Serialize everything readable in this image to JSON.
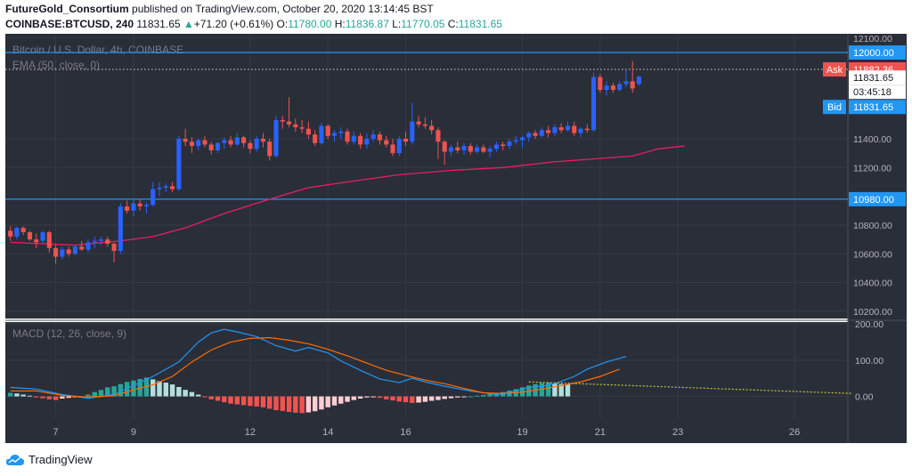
{
  "header": {
    "author": "FutureGold_Consortium",
    "published": "published on TradingView.com, October 20, 2020 13:14:45 BST",
    "symbol": "COINBASE:BTCUSD, 240",
    "last": "11831.65",
    "change_arrow": "▲",
    "change": "+71.20 (+0.61%)",
    "o_label": "O:",
    "o": "11780.00",
    "h_label": "H:",
    "h": "11836.87",
    "l_label": "L:",
    "l": "11770.05",
    "c_label": "C:",
    "c": "11831.65"
  },
  "footer": {
    "logo_text": "TradingView",
    "logo_icon": "tradingview-cloud-icon"
  },
  "colors": {
    "background": "#2a2e39",
    "grid": "#363a45",
    "up": "#2962ff",
    "down": "#ef5350",
    "ema": "#e91e63",
    "hline": "#2196f3",
    "macd": "#2196f3",
    "signal": "#ff6d00",
    "hist_pos_strong": "#26a69a",
    "hist_pos_weak": "#b2dfdb",
    "hist_neg_strong": "#ef5350",
    "hist_neg_weak": "#ffcdd2",
    "trendline": "#c0ca33",
    "ask": "#ef5350",
    "bid": "#2196f3"
  },
  "chart_data": [
    {
      "type": "candlestick",
      "title": "Bitcoin / U.S. Dollar, 4h, COINBASE",
      "indicator_label": "EMA (50, close, 0)",
      "y_axis_label": "USD",
      "y_ticks": [
        "12100.00",
        "11400.00",
        "11200.00",
        "10800.00",
        "10600.00",
        "10400.00",
        "10200.00"
      ],
      "ylim": [
        10150,
        12130
      ],
      "x_ticks": [
        {
          "label": "7",
          "i": 7
        },
        {
          "label": "9",
          "i": 19
        },
        {
          "label": "12",
          "i": 37
        },
        {
          "label": "14",
          "i": 49
        },
        {
          "label": "16",
          "i": 61
        },
        {
          "label": "19",
          "i": 79
        },
        {
          "label": "21",
          "i": 91
        },
        {
          "label": "23",
          "i": 103
        },
        {
          "label": "26",
          "i": 121
        }
      ],
      "candle_count_visible_slots": 130,
      "ohlc": [
        [
          10760,
          10790,
          10690,
          10720
        ],
        [
          10720,
          10790,
          10700,
          10780
        ],
        [
          10780,
          10790,
          10730,
          10750
        ],
        [
          10750,
          10760,
          10690,
          10700
        ],
        [
          10700,
          10740,
          10640,
          10680
        ],
        [
          10690,
          10760,
          10670,
          10750
        ],
        [
          10750,
          10760,
          10610,
          10640
        ],
        [
          10640,
          10660,
          10530,
          10580
        ],
        [
          10580,
          10650,
          10560,
          10630
        ],
        [
          10630,
          10650,
          10580,
          10600
        ],
        [
          10600,
          10660,
          10590,
          10650
        ],
        [
          10650,
          10690,
          10620,
          10630
        ],
        [
          10630,
          10700,
          10610,
          10680
        ],
        [
          10680,
          10720,
          10640,
          10690
        ],
        [
          10690,
          10720,
          10660,
          10700
        ],
        [
          10700,
          10720,
          10650,
          10670
        ],
        [
          10670,
          10680,
          10540,
          10620
        ],
        [
          10620,
          10950,
          10600,
          10930
        ],
        [
          10930,
          10970,
          10880,
          10900
        ],
        [
          10900,
          10980,
          10860,
          10950
        ],
        [
          10950,
          10980,
          10900,
          10930
        ],
        [
          10930,
          10960,
          10880,
          10940
        ],
        [
          10940,
          11100,
          10930,
          11050
        ],
        [
          11050,
          11100,
          11000,
          11060
        ],
        [
          11060,
          11090,
          11030,
          11070
        ],
        [
          11070,
          11100,
          11030,
          11050
        ],
        [
          11050,
          11420,
          11040,
          11400
        ],
        [
          11400,
          11470,
          11350,
          11380
        ],
        [
          11380,
          11410,
          11300,
          11350
        ],
        [
          11350,
          11400,
          11320,
          11390
        ],
        [
          11390,
          11420,
          11340,
          11360
        ],
        [
          11360,
          11380,
          11290,
          11320
        ],
        [
          11320,
          11380,
          11300,
          11370
        ],
        [
          11370,
          11410,
          11330,
          11390
        ],
        [
          11390,
          11420,
          11340,
          11360
        ],
        [
          11360,
          11440,
          11350,
          11410
        ],
        [
          11410,
          11420,
          11340,
          11370
        ],
        [
          11370,
          11390,
          11300,
          11330
        ],
        [
          11330,
          11420,
          11310,
          11400
        ],
        [
          11400,
          11440,
          11340,
          11380
        ],
        [
          11380,
          11400,
          11250,
          11280
        ],
        [
          11280,
          11560,
          11270,
          11530
        ],
        [
          11530,
          11560,
          11470,
          11520
        ],
        [
          11520,
          11690,
          11480,
          11500
        ],
        [
          11500,
          11540,
          11450,
          11480
        ],
        [
          11480,
          11530,
          11440,
          11470
        ],
        [
          11470,
          11520,
          11400,
          11430
        ],
        [
          11430,
          11460,
          11350,
          11370
        ],
        [
          11370,
          11510,
          11360,
          11490
        ],
        [
          11490,
          11500,
          11400,
          11420
        ],
        [
          11420,
          11460,
          11380,
          11440
        ],
        [
          11440,
          11480,
          11400,
          11450
        ],
        [
          11450,
          11470,
          11360,
          11380
        ],
        [
          11380,
          11450,
          11360,
          11420
        ],
        [
          11420,
          11440,
          11330,
          11360
        ],
        [
          11360,
          11440,
          11330,
          11400
        ],
        [
          11400,
          11460,
          11380,
          11430
        ],
        [
          11430,
          11450,
          11360,
          11390
        ],
        [
          11390,
          11420,
          11340,
          11360
        ],
        [
          11360,
          11400,
          11280,
          11300
        ],
        [
          11300,
          11420,
          11280,
          11400
        ],
        [
          11400,
          11450,
          11350,
          11380
        ],
        [
          11380,
          11650,
          11360,
          11520
        ],
        [
          11520,
          11560,
          11480,
          11500
        ],
        [
          11500,
          11550,
          11470,
          11490
        ],
        [
          11490,
          11530,
          11430,
          11460
        ],
        [
          11460,
          11480,
          11260,
          11380
        ],
        [
          11380,
          11390,
          11220,
          11310
        ],
        [
          11310,
          11360,
          11280,
          11340
        ],
        [
          11340,
          11380,
          11300,
          11320
        ],
        [
          11320,
          11370,
          11290,
          11350
        ],
        [
          11350,
          11370,
          11290,
          11310
        ],
        [
          11310,
          11360,
          11300,
          11340
        ],
        [
          11340,
          11360,
          11300,
          11310
        ],
        [
          11310,
          11350,
          11270,
          11330
        ],
        [
          11330,
          11380,
          11310,
          11360
        ],
        [
          11360,
          11380,
          11320,
          11350
        ],
        [
          11350,
          11400,
          11330,
          11380
        ],
        [
          11380,
          11420,
          11360,
          11390
        ],
        [
          11390,
          11420,
          11340,
          11410
        ],
        [
          11410,
          11450,
          11380,
          11440
        ],
        [
          11440,
          11460,
          11400,
          11420
        ],
        [
          11420,
          11480,
          11410,
          11460
        ],
        [
          11460,
          11490,
          11410,
          11440
        ],
        [
          11440,
          11500,
          11420,
          11480
        ],
        [
          11480,
          11510,
          11440,
          11460
        ],
        [
          11460,
          11520,
          11450,
          11490
        ],
        [
          11490,
          11520,
          11420,
          11440
        ],
        [
          11440,
          11480,
          11410,
          11470
        ],
        [
          11470,
          11500,
          11440,
          11460
        ],
        [
          11460,
          11860,
          11450,
          11830
        ],
        [
          11830,
          11850,
          11720,
          11740
        ],
        [
          11740,
          11800,
          11700,
          11770
        ],
        [
          11770,
          11790,
          11720,
          11740
        ],
        [
          11740,
          11800,
          11730,
          11780
        ],
        [
          11780,
          11880,
          11760,
          11800
        ],
        [
          11800,
          11940,
          11720,
          11750
        ],
        [
          11780,
          11836.87,
          11770.05,
          11831.65
        ]
      ],
      "ema": [
        [
          0,
          10680
        ],
        [
          10,
          10660
        ],
        [
          17,
          10690
        ],
        [
          22,
          10720
        ],
        [
          27,
          10780
        ],
        [
          33,
          10880
        ],
        [
          40,
          10980
        ],
        [
          46,
          11060
        ],
        [
          52,
          11100
        ],
        [
          60,
          11150
        ],
        [
          68,
          11180
        ],
        [
          76,
          11200
        ],
        [
          84,
          11240
        ],
        [
          90,
          11260
        ],
        [
          96,
          11280
        ],
        [
          100,
          11330
        ],
        [
          104,
          11350
        ]
      ],
      "price_labels": [
        {
          "name": "level-12000",
          "text": "12000.00",
          "value": 12000
        },
        {
          "name": "ask",
          "tag": "Ask",
          "text": "11882.36",
          "value": 11882.36
        },
        {
          "name": "last-price",
          "text": "11831.65",
          "value": 11831.65
        },
        {
          "name": "countdown",
          "text": "03:45:18",
          "value": 11831.65
        },
        {
          "name": "bid",
          "tag": "Bid",
          "text": "11831.65",
          "value": 11831.65
        },
        {
          "name": "level-10980",
          "text": "10980.00",
          "value": 10980
        }
      ],
      "horizontal_lines": [
        12000,
        10980
      ],
      "ask_line": 11882.36
    },
    {
      "type": "macd",
      "title": "MACD (12, 26, close, 9)",
      "y_ticks": [
        "200.00",
        "100.00",
        "0.00"
      ],
      "ylim": [
        -60,
        205
      ],
      "macd": [
        [
          0,
          25
        ],
        [
          4,
          20
        ],
        [
          8,
          5
        ],
        [
          12,
          -5
        ],
        [
          16,
          5
        ],
        [
          19,
          30
        ],
        [
          22,
          55
        ],
        [
          24,
          75
        ],
        [
          26,
          95
        ],
        [
          29,
          150
        ],
        [
          31,
          175
        ],
        [
          33,
          185
        ],
        [
          35,
          178
        ],
        [
          38,
          165
        ],
        [
          41,
          140
        ],
        [
          44,
          125
        ],
        [
          46,
          135
        ],
        [
          49,
          120
        ],
        [
          51,
          98
        ],
        [
          54,
          72
        ],
        [
          57,
          48
        ],
        [
          60,
          38
        ],
        [
          62,
          50
        ],
        [
          64,
          40
        ],
        [
          67,
          28
        ],
        [
          71,
          15
        ],
        [
          75,
          5
        ],
        [
          78,
          15
        ],
        [
          80,
          25
        ],
        [
          82,
          28
        ],
        [
          84,
          35
        ],
        [
          87,
          55
        ],
        [
          89,
          75
        ],
        [
          92,
          95
        ],
        [
          95,
          110
        ]
      ],
      "signal": [
        [
          0,
          15
        ],
        [
          4,
          15
        ],
        [
          8,
          3
        ],
        [
          12,
          -2
        ],
        [
          16,
          2
        ],
        [
          19,
          18
        ],
        [
          22,
          32
        ],
        [
          25,
          55
        ],
        [
          28,
          95
        ],
        [
          31,
          128
        ],
        [
          34,
          150
        ],
        [
          37,
          160
        ],
        [
          40,
          162
        ],
        [
          43,
          155
        ],
        [
          46,
          145
        ],
        [
          49,
          130
        ],
        [
          52,
          112
        ],
        [
          55,
          92
        ],
        [
          58,
          72
        ],
        [
          61,
          58
        ],
        [
          64,
          45
        ],
        [
          67,
          35
        ],
        [
          70,
          22
        ],
        [
          73,
          10
        ],
        [
          76,
          8
        ],
        [
          79,
          12
        ],
        [
          82,
          20
        ],
        [
          85,
          30
        ],
        [
          88,
          40
        ],
        [
          91,
          55
        ],
        [
          94,
          75
        ]
      ],
      "histogram": [
        10,
        8,
        5,
        2,
        -3,
        -5,
        -8,
        -10,
        -6,
        -4,
        -2,
        0,
        5,
        12,
        18,
        25,
        28,
        34,
        40,
        44,
        48,
        52,
        47,
        42,
        38,
        33,
        26,
        18,
        12,
        5,
        -2,
        -8,
        -12,
        -16,
        -20,
        -22,
        -24,
        -26,
        -28,
        -30,
        -34,
        -38,
        -40,
        -43,
        -45,
        -46,
        -44,
        -41,
        -36,
        -30,
        -25,
        -20,
        -15,
        -10,
        -6,
        -3,
        -2,
        -4,
        -8,
        -11,
        -14,
        -16,
        -18,
        -17,
        -15,
        -12,
        -10,
        -7,
        -5,
        -3,
        -1,
        0,
        2,
        4,
        6,
        9,
        12,
        16,
        20,
        25,
        30,
        34,
        37,
        38,
        36,
        34,
        33
      ],
      "trendline": [
        [
          80,
          40
        ],
        [
          130,
          8
        ]
      ]
    }
  ]
}
